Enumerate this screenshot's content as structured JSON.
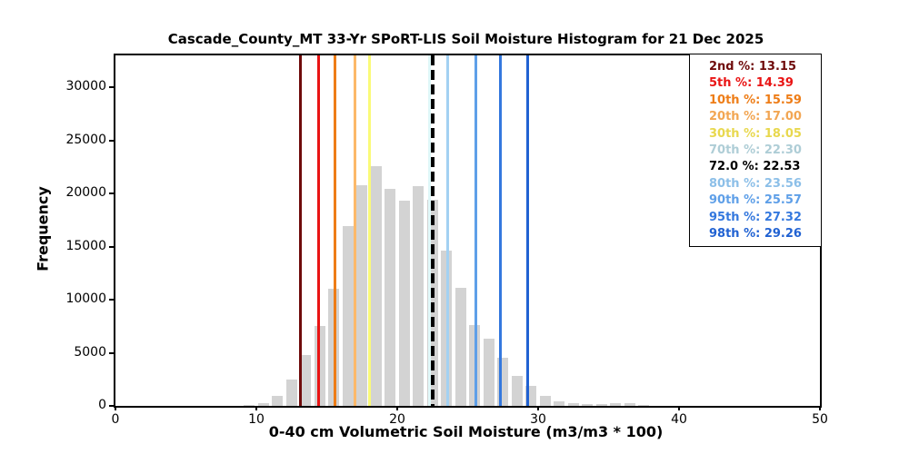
{
  "title": "Cascade_County_MT 33-Yr SPoRT-LIS Soil Moisture Histogram for 21 Dec 2025",
  "axes": {
    "xlabel": "0-40 cm Volumetric Soil Moisture (m3/m3 * 100)",
    "ylabel": "Frequency",
    "xticks": [
      0,
      10,
      20,
      30,
      40,
      50
    ],
    "yticks": [
      0,
      5000,
      10000,
      15000,
      20000,
      25000,
      30000
    ],
    "xlim": [
      0,
      50
    ],
    "ylim": [
      0,
      33000
    ]
  },
  "legend_separator": ": ",
  "chart_data": {
    "type": "bar",
    "subtype": "histogram",
    "title": "Cascade_County_MT 33-Yr SPoRT-LIS Soil Moisture Histogram for 21 Dec 2025",
    "xlabel": "0-40 cm Volumetric Soil Moisture (m3/m3 * 100)",
    "ylabel": "Frequency",
    "xlim": [
      0,
      50
    ],
    "ylim": [
      0,
      33000
    ],
    "grid": false,
    "legend_position": "upper right",
    "bar_color": "#d3d3d3",
    "bin_width": 1,
    "bar_rwidth": 0.8,
    "bin_start": [
      9,
      10,
      11,
      12,
      13,
      14,
      15,
      16,
      17,
      18,
      19,
      20,
      21,
      22,
      23,
      24,
      25,
      26,
      27,
      28,
      29,
      30,
      31,
      32,
      33,
      34,
      35,
      36,
      37
    ],
    "frequencies": [
      100,
      300,
      900,
      2500,
      4800,
      7500,
      11000,
      16900,
      20800,
      22550,
      20400,
      19350,
      20700,
      19450,
      14650,
      11150,
      7650,
      6350,
      4550,
      2850,
      1850,
      950,
      400,
      250,
      150,
      180,
      280,
      230,
      120
    ],
    "percentile_lines": [
      {
        "key": "p2",
        "label": "2nd %",
        "value": 13.15,
        "value_text": "13.15",
        "line_color": "#6f0b0b",
        "legend_color": "#6f0b0b",
        "dashed": false
      },
      {
        "key": "p5",
        "label": "5th %",
        "value": 14.39,
        "value_text": "14.39",
        "line_color": "#e91414",
        "legend_color": "#e91414",
        "dashed": false
      },
      {
        "key": "p10",
        "label": "10th %",
        "value": 15.59,
        "value_text": "15.59",
        "line_color": "#ee7d17",
        "legend_color": "#ee7d17",
        "dashed": false
      },
      {
        "key": "p20",
        "label": "20th %",
        "value": 17.0,
        "value_text": "17.00",
        "line_color": "#fcb969",
        "legend_color": "#f2a653",
        "dashed": false
      },
      {
        "key": "p30",
        "label": "30th %",
        "value": 18.05,
        "value_text": "18.05",
        "line_color": "#fafa78",
        "legend_color": "#e8d84e",
        "dashed": false
      },
      {
        "key": "p70",
        "label": "70th %",
        "value": 22.3,
        "value_text": "22.30",
        "line_color": "#dff7f8",
        "legend_color": "#aecdd6",
        "dashed": false
      },
      {
        "key": "p72",
        "label": "72.0 %",
        "value": 22.53,
        "value_text": "22.53",
        "line_color": "#000000",
        "legend_color": "#000000",
        "dashed": true
      },
      {
        "key": "p80",
        "label": "80th %",
        "value": 23.56,
        "value_text": "23.56",
        "line_color": "#a3d1f2",
        "legend_color": "#8cbfe8",
        "dashed": false
      },
      {
        "key": "p90",
        "label": "90th %",
        "value": 25.57,
        "value_text": "25.57",
        "line_color": "#5e9fe8",
        "legend_color": "#5e9fe8",
        "dashed": false
      },
      {
        "key": "p95",
        "label": "95th %",
        "value": 27.32,
        "value_text": "27.32",
        "line_color": "#3478de",
        "legend_color": "#3478de",
        "dashed": false
      },
      {
        "key": "p98",
        "label": "98th %",
        "value": 29.26,
        "value_text": "29.26",
        "line_color": "#2162d2",
        "legend_color": "#2162d2",
        "dashed": false
      }
    ]
  }
}
